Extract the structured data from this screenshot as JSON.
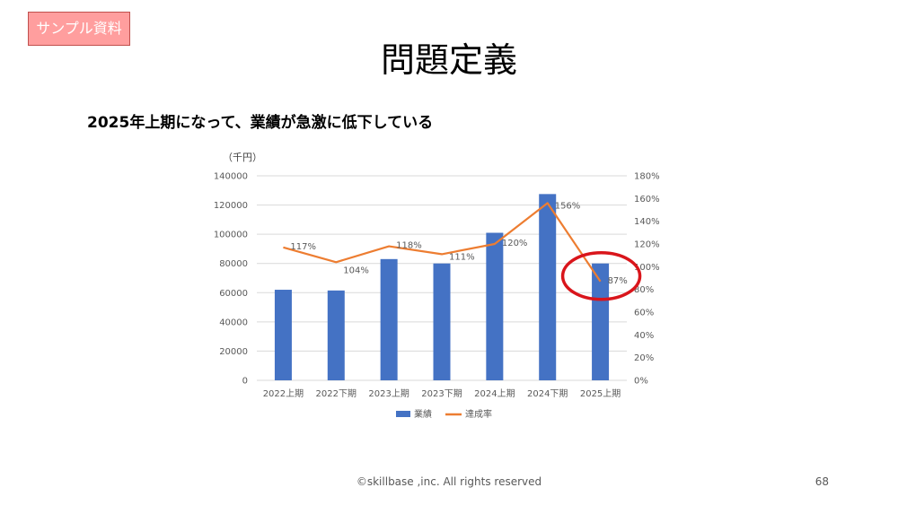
{
  "badge": "サンプル資料",
  "title": "問題定義",
  "subtitle": "2025年上期になって、業績が急激に低下している",
  "footer": "©skillbase ,inc. All rights reserved",
  "page_number": "68",
  "colors": {
    "bar": "#4472c4",
    "line": "#ed7d31",
    "highlight": "#d9151b",
    "grid": "#d9d9d9",
    "axis_text": "#595959"
  },
  "chart_data": {
    "type": "bar",
    "categories": [
      "2022上期",
      "2022下期",
      "2023上期",
      "2023下期",
      "2024上期",
      "2024下期",
      "2025上期"
    ],
    "series": [
      {
        "name": "業績",
        "type": "bar",
        "axis": "left",
        "values": [
          62000,
          61500,
          83000,
          80000,
          101000,
          127500,
          80000
        ]
      },
      {
        "name": "達成率",
        "type": "line",
        "axis": "right",
        "values": [
          117,
          104,
          118,
          111,
          120,
          156,
          87
        ],
        "labels": [
          "117%",
          "104%",
          "118%",
          "111%",
          "120%",
          "156%",
          "87%"
        ]
      }
    ],
    "y_left": {
      "unit_label": "（千円）",
      "min": 0,
      "max": 140000,
      "ticks": [
        "0",
        "20000",
        "40000",
        "60000",
        "80000",
        "100000",
        "120000",
        "140000"
      ]
    },
    "y_right": {
      "min": 0,
      "max": 180,
      "ticks": [
        "0%",
        "20%",
        "40%",
        "60%",
        "80%",
        "100%",
        "120%",
        "140%",
        "160%",
        "180%"
      ]
    },
    "grid": true,
    "legend_position": "bottom",
    "highlight_category": "2025上期"
  }
}
